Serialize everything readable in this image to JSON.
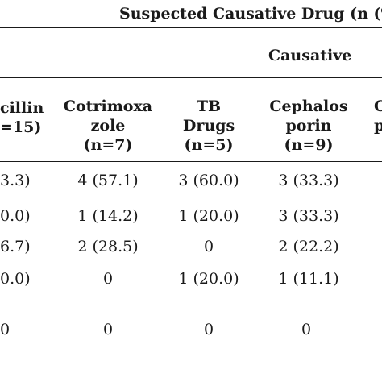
{
  "title": "Suspected Causative Drug (n (%",
  "subheader": "Causative",
  "columns": [
    {
      "lines": [
        "cillin",
        "=15)"
      ]
    },
    {
      "lines": [
        "Cotrimoxa",
        "zole",
        "(n=7)"
      ]
    },
    {
      "lines": [
        "TB",
        "Drugs",
        "(n=5)"
      ]
    },
    {
      "lines": [
        "Cephalos",
        "porin",
        "(n=9)"
      ]
    },
    {
      "lines": [
        "C",
        "p"
      ]
    }
  ],
  "rows": [
    [
      "3.3)",
      "4 (57.1)",
      "3 (60.0)",
      "3 (33.3)"
    ],
    [
      "0.0)",
      "1 (14.2)",
      "1 (20.0)",
      "3 (33.3)"
    ],
    [
      "6.7)",
      "2 (28.5)",
      "0",
      "2 (22.2)"
    ],
    [
      "0.0)",
      "0",
      "1 (20.0)",
      "1 (11.1)"
    ],
    [
      "0",
      "0",
      "0",
      "0"
    ]
  ]
}
